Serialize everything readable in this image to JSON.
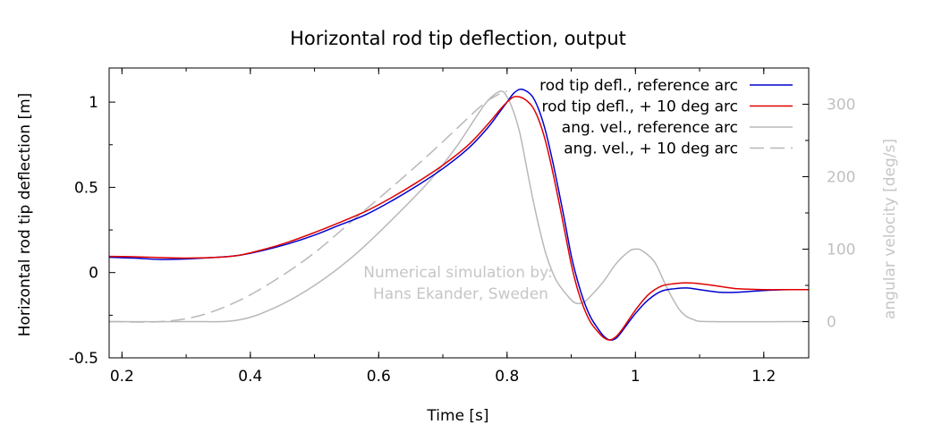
{
  "chart_data": {
    "type": "line",
    "title": "Horizontal rod tip deflection, output",
    "xlabel": "Time [s]",
    "ylabel": "Horizontal rod tip deflection [m]",
    "y2label": "angular velocity [deg/s]",
    "xlim": [
      0.18,
      1.27
    ],
    "ylim": [
      -0.5,
      1.2
    ],
    "y2lim": [
      -50,
      350
    ],
    "xticks": [
      "0.2",
      "0.4",
      "0.6",
      "0.8",
      "1",
      "1.2"
    ],
    "yticks": [
      "-0.5",
      "0",
      "0.5",
      "1"
    ],
    "y2ticks": [
      "0",
      "100",
      "200",
      "300"
    ],
    "grid": false,
    "legend_position": "top-right",
    "annotation": [
      "Numerical simulation by:",
      "Hans Ekander, Sweden"
    ],
    "series": [
      {
        "name": "rod tip defl., reference arc",
        "axis": "left",
        "color": "#0000d0",
        "dash": "solid",
        "points": [
          [
            0.18,
            0.09
          ],
          [
            0.22,
            0.085
          ],
          [
            0.26,
            0.077
          ],
          [
            0.3,
            0.08
          ],
          [
            0.34,
            0.088
          ],
          [
            0.38,
            0.1
          ],
          [
            0.42,
            0.13
          ],
          [
            0.46,
            0.17
          ],
          [
            0.5,
            0.22
          ],
          [
            0.54,
            0.28
          ],
          [
            0.58,
            0.34
          ],
          [
            0.62,
            0.42
          ],
          [
            0.66,
            0.51
          ],
          [
            0.7,
            0.61
          ],
          [
            0.74,
            0.73
          ],
          [
            0.77,
            0.85
          ],
          [
            0.79,
            0.95
          ],
          [
            0.8,
            1.0
          ],
          [
            0.81,
            1.05
          ],
          [
            0.82,
            1.075
          ],
          [
            0.83,
            1.065
          ],
          [
            0.84,
            1.03
          ],
          [
            0.85,
            0.95
          ],
          [
            0.86,
            0.83
          ],
          [
            0.87,
            0.67
          ],
          [
            0.88,
            0.49
          ],
          [
            0.89,
            0.3
          ],
          [
            0.9,
            0.1
          ],
          [
            0.91,
            -0.05
          ],
          [
            0.92,
            -0.17
          ],
          [
            0.93,
            -0.26
          ],
          [
            0.94,
            -0.32
          ],
          [
            0.95,
            -0.37
          ],
          [
            0.96,
            -0.395
          ],
          [
            0.97,
            -0.385
          ],
          [
            0.98,
            -0.34
          ],
          [
            1.0,
            -0.24
          ],
          [
            1.02,
            -0.16
          ],
          [
            1.04,
            -0.11
          ],
          [
            1.06,
            -0.095
          ],
          [
            1.08,
            -0.09
          ],
          [
            1.1,
            -0.1
          ],
          [
            1.13,
            -0.115
          ],
          [
            1.16,
            -0.115
          ],
          [
            1.2,
            -0.105
          ],
          [
            1.24,
            -0.1
          ],
          [
            1.27,
            -0.1
          ]
        ]
      },
      {
        "name": "rod tip defl., + 10 deg arc",
        "axis": "left",
        "color": "#e00000",
        "dash": "solid",
        "points": [
          [
            0.18,
            0.095
          ],
          [
            0.22,
            0.093
          ],
          [
            0.26,
            0.088
          ],
          [
            0.3,
            0.085
          ],
          [
            0.34,
            0.088
          ],
          [
            0.38,
            0.1
          ],
          [
            0.42,
            0.135
          ],
          [
            0.46,
            0.18
          ],
          [
            0.5,
            0.235
          ],
          [
            0.54,
            0.295
          ],
          [
            0.58,
            0.36
          ],
          [
            0.62,
            0.44
          ],
          [
            0.66,
            0.53
          ],
          [
            0.7,
            0.63
          ],
          [
            0.74,
            0.75
          ],
          [
            0.77,
            0.87
          ],
          [
            0.79,
            0.96
          ],
          [
            0.8,
            1.0
          ],
          [
            0.81,
            1.03
          ],
          [
            0.82,
            1.03
          ],
          [
            0.83,
            1.01
          ],
          [
            0.84,
            0.97
          ],
          [
            0.85,
            0.89
          ],
          [
            0.86,
            0.77
          ],
          [
            0.87,
            0.61
          ],
          [
            0.88,
            0.43
          ],
          [
            0.89,
            0.24
          ],
          [
            0.9,
            0.05
          ],
          [
            0.91,
            -0.1
          ],
          [
            0.92,
            -0.21
          ],
          [
            0.93,
            -0.29
          ],
          [
            0.94,
            -0.34
          ],
          [
            0.95,
            -0.38
          ],
          [
            0.96,
            -0.395
          ],
          [
            0.97,
            -0.375
          ],
          [
            0.98,
            -0.33
          ],
          [
            1.0,
            -0.22
          ],
          [
            1.02,
            -0.13
          ],
          [
            1.04,
            -0.08
          ],
          [
            1.06,
            -0.065
          ],
          [
            1.08,
            -0.06
          ],
          [
            1.1,
            -0.065
          ],
          [
            1.13,
            -0.08
          ],
          [
            1.16,
            -0.095
          ],
          [
            1.2,
            -0.1
          ],
          [
            1.24,
            -0.1
          ],
          [
            1.27,
            -0.1
          ]
        ]
      },
      {
        "name": "ang. vel., reference arc",
        "axis": "right",
        "color": "#b8b8b8",
        "dash": "solid",
        "points": [
          [
            0.18,
            0
          ],
          [
            0.3,
            0
          ],
          [
            0.38,
            2
          ],
          [
            0.44,
            20
          ],
          [
            0.5,
            50
          ],
          [
            0.56,
            90
          ],
          [
            0.62,
            140
          ],
          [
            0.68,
            195
          ],
          [
            0.72,
            240
          ],
          [
            0.75,
            280
          ],
          [
            0.77,
            305
          ],
          [
            0.79,
            318
          ],
          [
            0.8,
            310
          ],
          [
            0.81,
            290
          ],
          [
            0.82,
            260
          ],
          [
            0.83,
            215
          ],
          [
            0.84,
            170
          ],
          [
            0.85,
            130
          ],
          [
            0.86,
            95
          ],
          [
            0.87,
            70
          ],
          [
            0.88,
            52
          ],
          [
            0.9,
            30
          ],
          [
            0.91,
            25
          ],
          [
            0.92,
            27
          ],
          [
            0.93,
            35
          ],
          [
            0.95,
            55
          ],
          [
            0.97,
            80
          ],
          [
            0.99,
            97
          ],
          [
            1.0,
            100
          ],
          [
            1.01,
            98
          ],
          [
            1.03,
            82
          ],
          [
            1.05,
            45
          ],
          [
            1.07,
            15
          ],
          [
            1.09,
            3
          ],
          [
            1.12,
            0
          ],
          [
            1.27,
            0
          ]
        ]
      },
      {
        "name": "ang. vel., + 10 deg arc",
        "axis": "right",
        "color": "#b8b8b8",
        "dash": "dashed",
        "points": [
          [
            0.18,
            0
          ],
          [
            0.26,
            0
          ],
          [
            0.32,
            8
          ],
          [
            0.38,
            28
          ],
          [
            0.44,
            58
          ],
          [
            0.5,
            95
          ],
          [
            0.56,
            140
          ],
          [
            0.62,
            185
          ],
          [
            0.68,
            232
          ],
          [
            0.72,
            265
          ],
          [
            0.75,
            290
          ],
          [
            0.77,
            305
          ],
          [
            0.79,
            315
          ],
          [
            0.8,
            318
          ]
        ]
      }
    ]
  }
}
